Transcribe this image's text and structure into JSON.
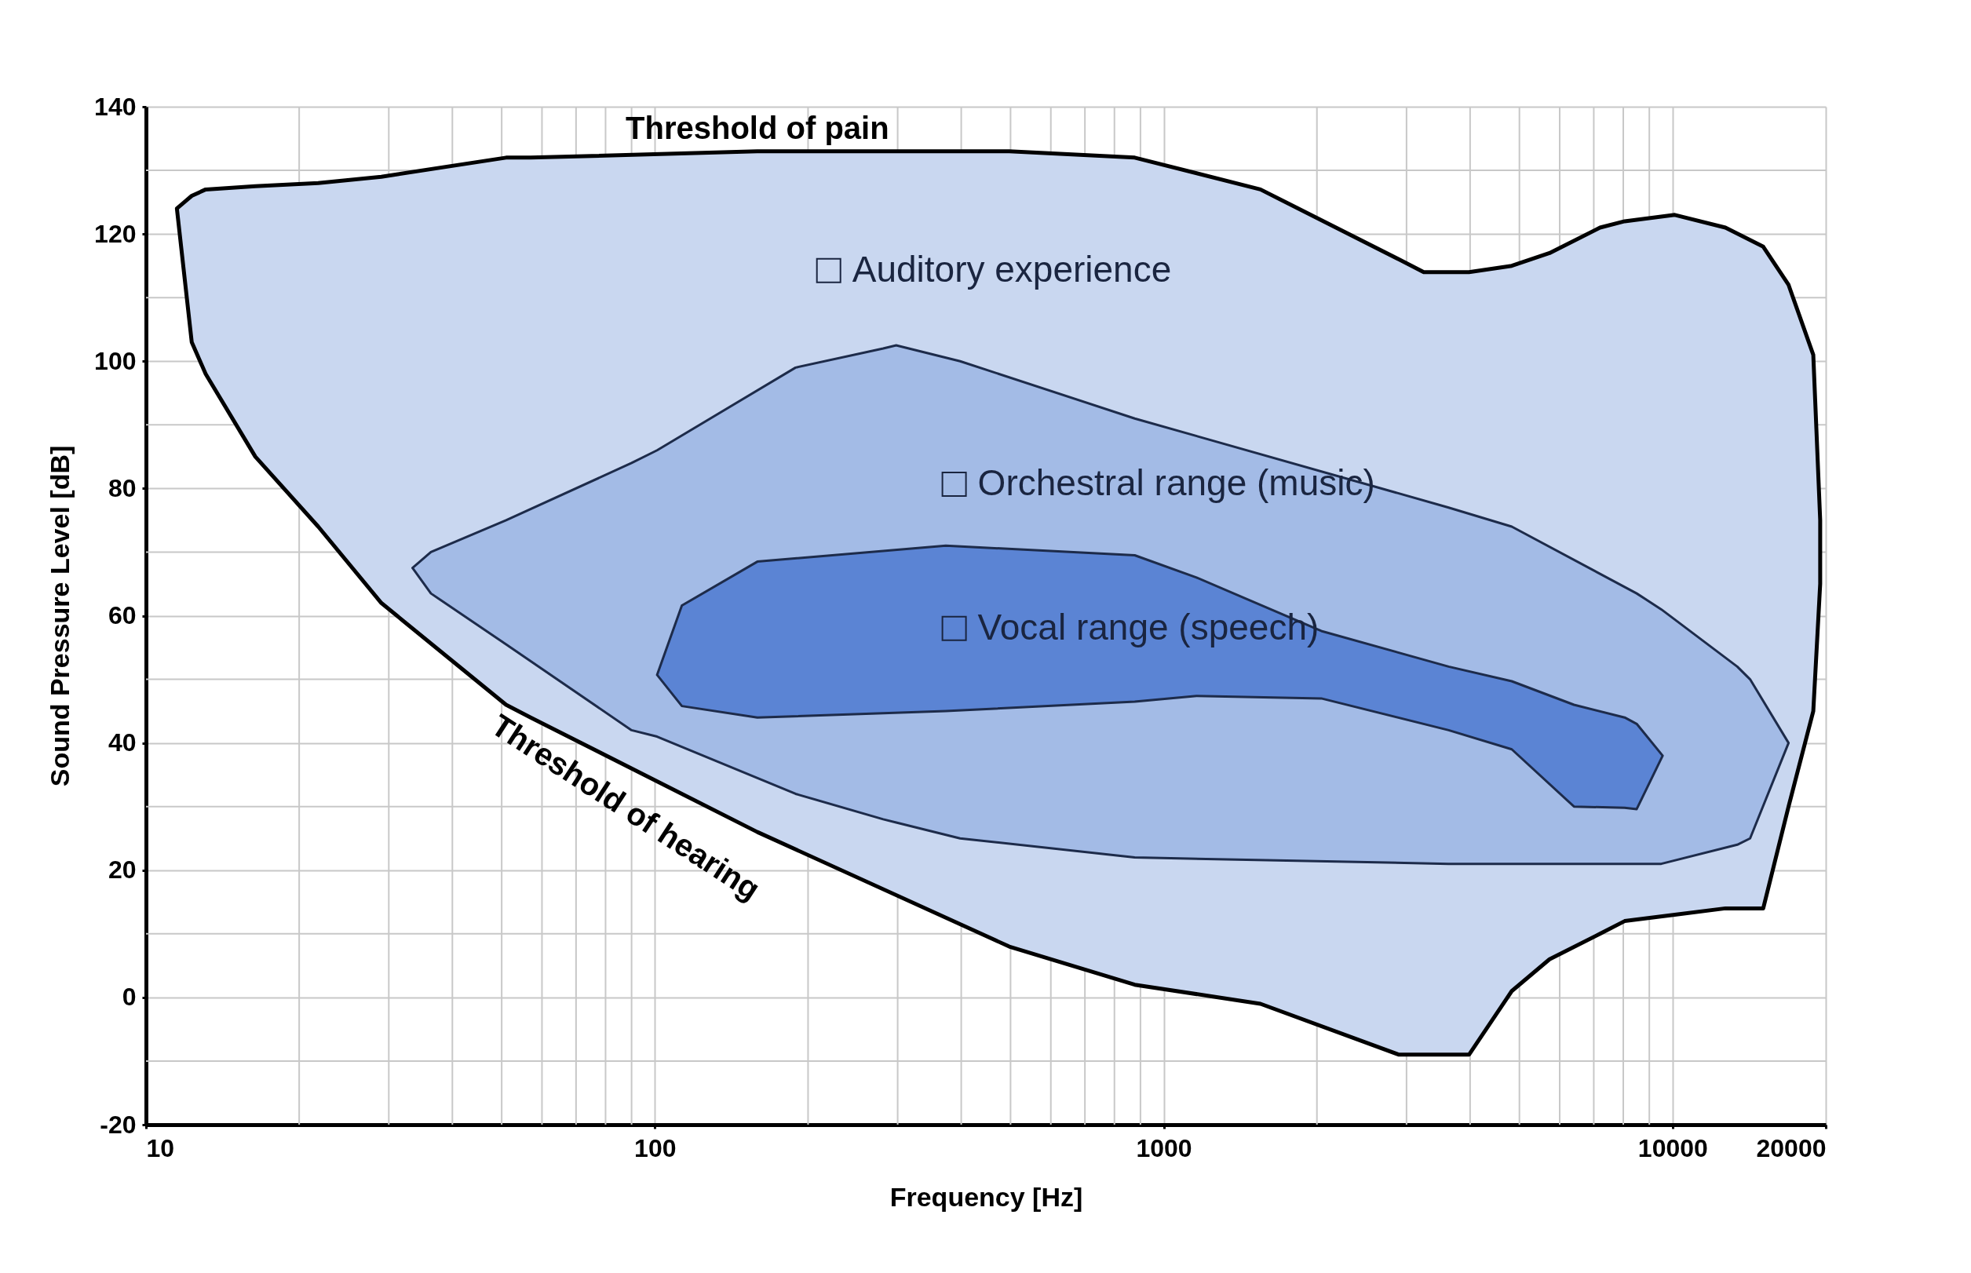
{
  "chart_data": {
    "type": "area",
    "xlabel": "Frequency [Hz]",
    "ylabel": "Sound Pressure Level [dB]",
    "log": "x",
    "grid": true,
    "xlim": [
      10,
      20000
    ],
    "xticks": [
      10,
      100,
      {
        "value": 1000,
        "label": "1000"
      },
      {
        "value": 10000,
        "label": "10000"
      },
      {
        "value": 20000,
        "label": "20000"
      }
    ],
    "ylim": [
      -20,
      140
    ],
    "yticks": [
      -20,
      0,
      20,
      40,
      60,
      80,
      100,
      120,
      140
    ],
    "series": [
      {
        "name": "Auditory experience",
        "color": "#c9d7f0",
        "x": [
          11.5,
          12.3,
          13.1,
          16.4,
          21.8,
          29,
          51,
          57,
          159,
          497,
          877,
          1549,
          2900,
          3243,
          3980,
          4830,
          5730,
          7200,
          8050,
          10100,
          12700,
          15070,
          16900,
          18900,
          19500
        ],
        "values": [
          null,
          null,
          null,
          null,
          null,
          null,
          null,
          null,
          null,
          null,
          null,
          null,
          null,
          null,
          null,
          null,
          null,
          null,
          null,
          null,
          null,
          null,
          null,
          null,
          null
        ],
        "upper": [
          124,
          126,
          127,
          127.5,
          128,
          129,
          132,
          132,
          133,
          133,
          132,
          127,
          116,
          114,
          114,
          115,
          117,
          121,
          122,
          123,
          121,
          118,
          112,
          101,
          75
        ],
        "lower": [
          124,
          103,
          98,
          85,
          74,
          62,
          46,
          44,
          26,
          8,
          2,
          -1,
          -9,
          -9,
          -9,
          1,
          6,
          10,
          12,
          13,
          14,
          14,
          30,
          45,
          65
        ]
      },
      {
        "name": "Orchestral range (music)",
        "color": "#a3bbe6",
        "x": [
          33.4,
          36.3,
          51,
          90,
          101,
          189,
          281,
          298,
          398,
          877,
          3630,
          4830,
          8500,
          9500,
          13400,
          14200,
          16900
        ],
        "values": [
          null,
          null,
          null,
          null,
          null,
          null,
          null,
          null,
          null,
          null,
          null,
          null,
          null,
          null,
          null,
          null,
          null
        ],
        "upper": [
          67.5,
          70,
          75,
          84,
          86,
          99,
          102,
          102.5,
          100,
          91,
          77,
          74,
          63.5,
          61,
          52,
          50,
          40
        ],
        "lower": [
          67.5,
          63.5,
          55.5,
          42,
          41,
          32,
          28,
          27.5,
          25,
          22,
          21,
          21,
          21,
          21,
          24,
          25,
          40
        ]
      },
      {
        "name": "Vocal range (speech)",
        "color": "#5b84d4",
        "x": [
          101,
          113,
          159,
          373,
          877,
          1160,
          2040,
          3630,
          4830,
          6400,
          8050,
          8500,
          9560
        ],
        "values": [
          null,
          null,
          null,
          null,
          null,
          null,
          null,
          null,
          null,
          null,
          null,
          null,
          null
        ],
        "upper": [
          50.7,
          61.6,
          68.5,
          71,
          69.5,
          66,
          57.6,
          52,
          49.7,
          46,
          44,
          43,
          38
        ],
        "lower": [
          50.7,
          45.8,
          44,
          45,
          46.5,
          47.4,
          47,
          42,
          39,
          30,
          29.8,
          29.6,
          38
        ]
      }
    ],
    "annotations": [
      "Threshold of pain",
      "Threshold of hearing"
    ]
  }
}
